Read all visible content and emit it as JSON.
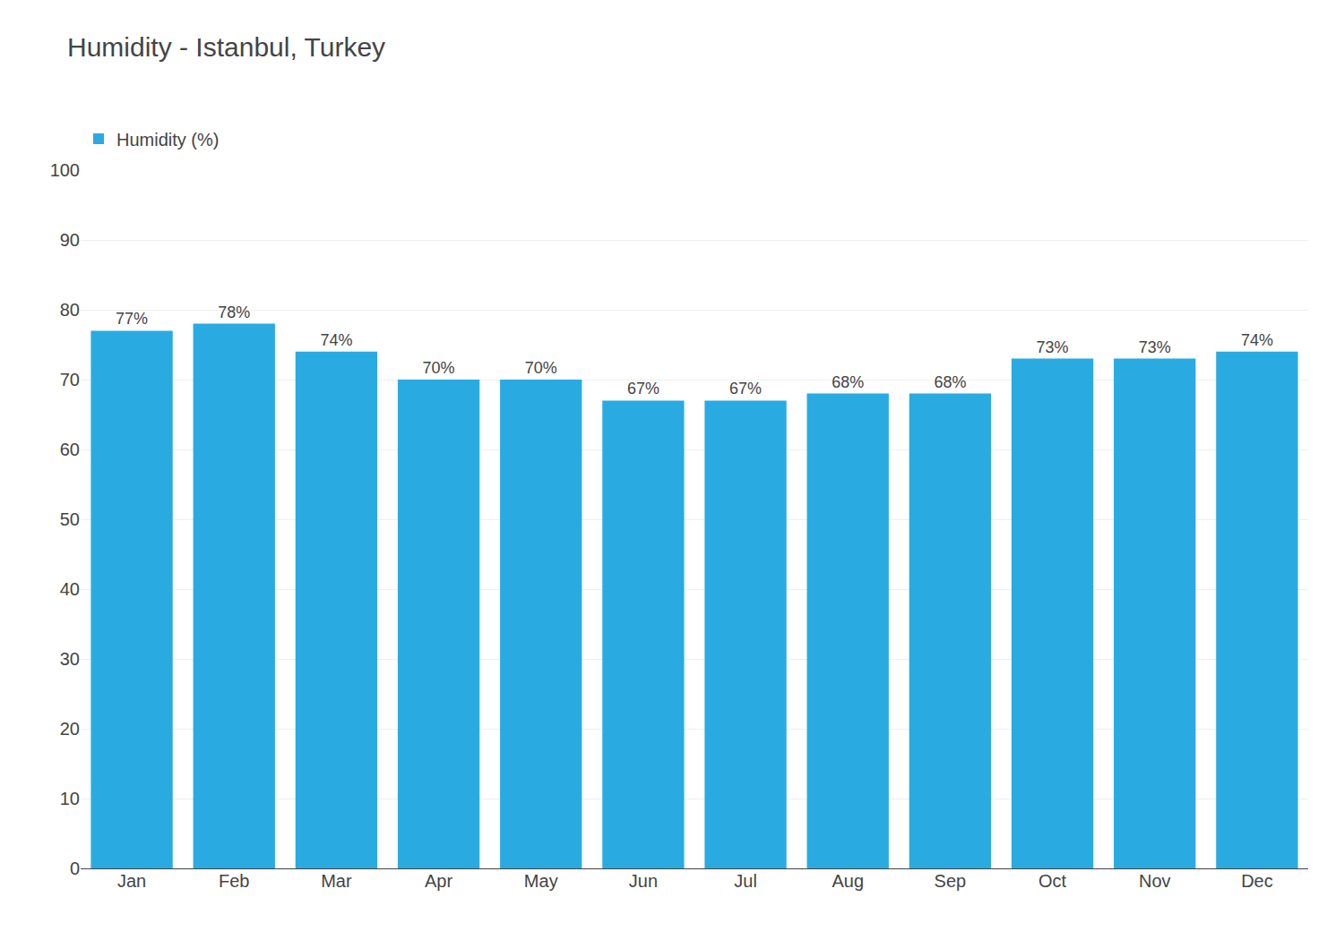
{
  "chart_data": {
    "type": "bar",
    "title": "Humidity - Istanbul, Turkey",
    "categories": [
      "Jan",
      "Feb",
      "Mar",
      "Apr",
      "May",
      "Jun",
      "Jul",
      "Aug",
      "Sep",
      "Oct",
      "Nov",
      "Dec"
    ],
    "series": [
      {
        "name": "Humidity (%)",
        "color": "#29ABE2",
        "values": [
          77,
          78,
          74,
          70,
          70,
          67,
          67,
          68,
          68,
          73,
          73,
          74
        ],
        "value_labels": [
          "77%",
          "78%",
          "74%",
          "70%",
          "70%",
          "67%",
          "67%",
          "68%",
          "68%",
          "73%",
          "73%",
          "74%"
        ]
      }
    ],
    "ylim": [
      0,
      100
    ],
    "yticks": [
      0,
      10,
      20,
      30,
      40,
      50,
      60,
      70,
      80,
      90,
      100
    ],
    "grid": true,
    "legend": "top left",
    "data_labels": true
  }
}
